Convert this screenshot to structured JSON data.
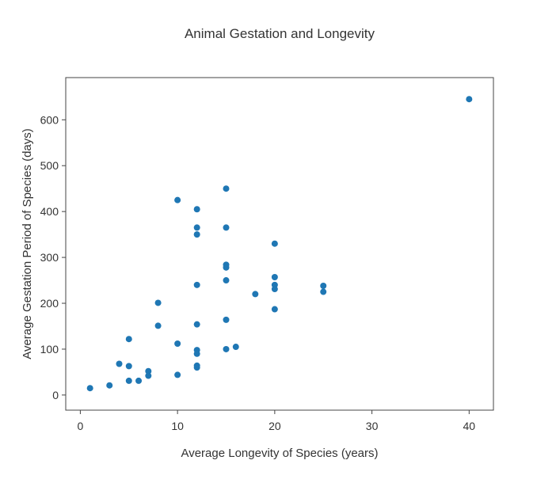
{
  "chart_data": {
    "type": "scatter",
    "title": "Animal Gestation and Longevity",
    "xlabel": "Average Longevity of Species (years)",
    "ylabel": "Average Gestation Period of Species (days)",
    "xlim": [
      -1.5,
      42.5
    ],
    "ylim": [
      -33,
      692
    ],
    "xticks": [
      0,
      10,
      20,
      30,
      40
    ],
    "yticks": [
      0,
      100,
      200,
      300,
      400,
      500,
      600
    ],
    "grid": false,
    "marker_color": "#1f77b4",
    "points": [
      {
        "x": 1,
        "y": 15
      },
      {
        "x": 3,
        "y": 21
      },
      {
        "x": 4,
        "y": 68
      },
      {
        "x": 5,
        "y": 122
      },
      {
        "x": 5,
        "y": 63
      },
      {
        "x": 5,
        "y": 31
      },
      {
        "x": 6,
        "y": 31
      },
      {
        "x": 7,
        "y": 52
      },
      {
        "x": 7,
        "y": 42
      },
      {
        "x": 8,
        "y": 201
      },
      {
        "x": 8,
        "y": 151
      },
      {
        "x": 10,
        "y": 425
      },
      {
        "x": 10,
        "y": 112
      },
      {
        "x": 10,
        "y": 44
      },
      {
        "x": 12,
        "y": 405
      },
      {
        "x": 12,
        "y": 365
      },
      {
        "x": 12,
        "y": 350
      },
      {
        "x": 12,
        "y": 240
      },
      {
        "x": 12,
        "y": 154
      },
      {
        "x": 12,
        "y": 98
      },
      {
        "x": 12,
        "y": 90
      },
      {
        "x": 12,
        "y": 64
      },
      {
        "x": 12,
        "y": 60
      },
      {
        "x": 15,
        "y": 450
      },
      {
        "x": 15,
        "y": 365
      },
      {
        "x": 15,
        "y": 284
      },
      {
        "x": 15,
        "y": 278
      },
      {
        "x": 15,
        "y": 250
      },
      {
        "x": 15,
        "y": 164
      },
      {
        "x": 15,
        "y": 100
      },
      {
        "x": 16,
        "y": 105
      },
      {
        "x": 18,
        "y": 220
      },
      {
        "x": 20,
        "y": 330
      },
      {
        "x": 20,
        "y": 257
      },
      {
        "x": 20,
        "y": 240
      },
      {
        "x": 20,
        "y": 231
      },
      {
        "x": 20,
        "y": 187
      },
      {
        "x": 25,
        "y": 238
      },
      {
        "x": 25,
        "y": 225
      },
      {
        "x": 40,
        "y": 645
      }
    ]
  }
}
